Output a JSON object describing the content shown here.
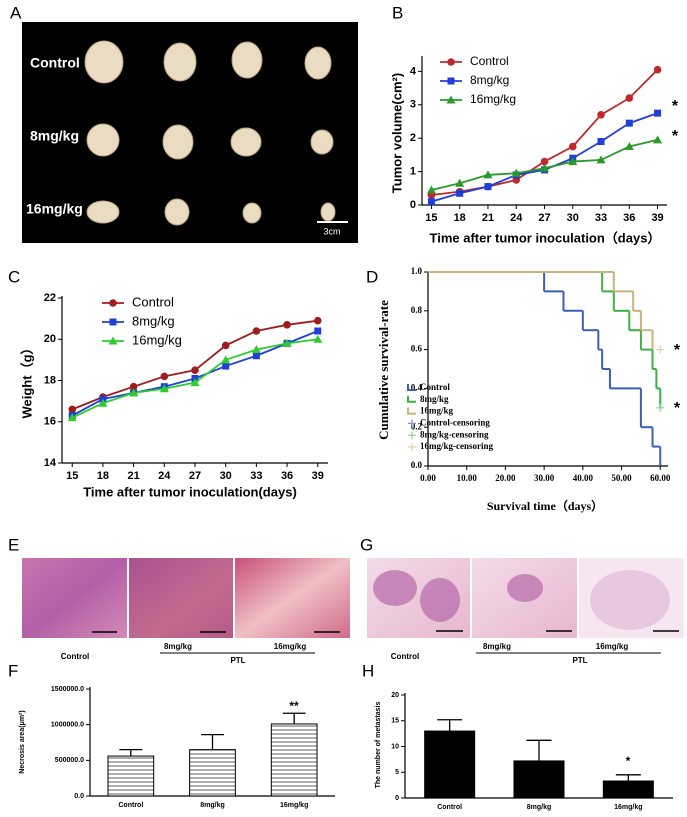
{
  "images": {
    "A": {
      "panel": "A",
      "labels": [
        "Control",
        "8mg/kg",
        "16mg/kg"
      ],
      "scale_bar": "3cm"
    },
    "E": {
      "panel": "E",
      "labels": [
        "Control",
        "8mg/kg",
        "16mg/kg"
      ],
      "group": "PTL"
    },
    "G": {
      "panel": "G",
      "labels": [
        "Control",
        "8mg/kg",
        "16mg/kg"
      ],
      "group": "PTL"
    }
  },
  "chart_data": [
    {
      "type": "line",
      "panel": "B",
      "x_label": "Time after tumor inoculation（days）",
      "y_label": "Tumor volume(cm²)",
      "x": [
        15,
        18,
        21,
        24,
        27,
        30,
        33,
        36,
        39
      ],
      "series": [
        {
          "name": "Control",
          "color": "#c0282d",
          "marker": "circle",
          "values": [
            0.3,
            0.4,
            0.55,
            0.75,
            1.3,
            1.75,
            2.7,
            3.2,
            4.05
          ]
        },
        {
          "name": "8mg/kg",
          "color": "#1f3fd8",
          "marker": "square",
          "values": [
            0.1,
            0.35,
            0.55,
            0.9,
            1.05,
            1.4,
            1.9,
            2.45,
            2.75
          ]
        },
        {
          "name": "16mg/kg",
          "color": "#2a9a2a",
          "marker": "triangle",
          "values": [
            0.45,
            0.65,
            0.9,
            0.95,
            1.1,
            1.3,
            1.35,
            1.75,
            1.95
          ]
        }
      ],
      "xlim": [
        14,
        40
      ],
      "xticks": [
        15,
        18,
        21,
        24,
        27,
        30,
        33,
        36,
        39
      ],
      "ylim": [
        0,
        4.4
      ],
      "yticks": [
        0,
        1,
        2,
        3,
        4
      ],
      "legend": "upper left",
      "annotations": [
        "*",
        "*"
      ]
    },
    {
      "type": "line",
      "panel": "C",
      "x_label": "Time after tumor inoculation(days)",
      "y_label": "Weight（g）",
      "x": [
        15,
        18,
        21,
        24,
        27,
        30,
        33,
        36,
        39
      ],
      "series": [
        {
          "name": "Control",
          "color": "#a01c1c",
          "marker": "circle",
          "values": [
            16.6,
            17.2,
            17.7,
            18.2,
            18.5,
            19.7,
            20.4,
            20.7,
            20.9
          ]
        },
        {
          "name": "8mg/kg",
          "color": "#1f3fd8",
          "marker": "square",
          "values": [
            16.3,
            17.1,
            17.4,
            17.7,
            18.1,
            18.7,
            19.2,
            19.8,
            20.4
          ]
        },
        {
          "name": "16mg/kg",
          "color": "#2ecc2e",
          "marker": "triangle",
          "values": [
            16.2,
            16.9,
            17.4,
            17.6,
            17.9,
            19.0,
            19.5,
            19.8,
            20.0
          ]
        }
      ],
      "xlim": [
        14,
        40
      ],
      "xticks": [
        15,
        18,
        21,
        24,
        27,
        30,
        33,
        36,
        39
      ],
      "ylim": [
        14,
        22
      ],
      "yticks": [
        14,
        16,
        18,
        20,
        22
      ],
      "legend": "upper left"
    },
    {
      "type": "step",
      "panel": "D",
      "x_label": "Survival time（days）",
      "y_label": "Cumulative survival-rate",
      "series": [
        {
          "name": "Control",
          "color": "#3a5fb8",
          "x": [
            0,
            30,
            35,
            40,
            44,
            45,
            47,
            55,
            58,
            60
          ],
          "values": [
            1.0,
            0.9,
            0.8,
            0.7,
            0.6,
            0.5,
            0.4,
            0.2,
            0.1,
            0.0
          ]
        },
        {
          "name": "8mg/kg",
          "color": "#3cb043",
          "x": [
            0,
            45,
            48,
            52,
            55,
            58,
            59,
            60
          ],
          "values": [
            1.0,
            0.9,
            0.8,
            0.7,
            0.6,
            0.5,
            0.4,
            0.3
          ]
        },
        {
          "name": "16mg/kg",
          "color": "#c8b47a",
          "x": [
            0,
            48,
            53,
            55,
            58
          ],
          "values": [
            1.0,
            0.9,
            0.8,
            0.7,
            0.6
          ]
        },
        {
          "name": "Control-censoring",
          "color": "#7f95cf",
          "censoring": true,
          "x": [],
          "values": []
        },
        {
          "name": "8mg/kg-censoring",
          "color": "#8ad48f",
          "censoring": true,
          "x": [
            60
          ],
          "values": [
            0.3
          ]
        },
        {
          "name": "16mg/kg-censoring",
          "color": "#ddd0a8",
          "censoring": true,
          "x": [
            60
          ],
          "values": [
            0.6
          ]
        }
      ],
      "xlim": [
        0,
        62
      ],
      "xticks": [
        {
          "value": 0,
          "label": "0.00"
        },
        {
          "value": 10,
          "label": "10.00"
        },
        {
          "value": 20,
          "label": "20.00"
        },
        {
          "value": 30,
          "label": "30.00"
        },
        {
          "value": 40,
          "label": "40.00"
        },
        {
          "value": 50,
          "label": "50.00"
        },
        {
          "value": 60,
          "label": "60.00"
        }
      ],
      "ylim": [
        0,
        1
      ],
      "yticks": [
        {
          "value": 0,
          "label": "0.0"
        },
        {
          "value": 0.2,
          "label": "0.2"
        },
        {
          "value": 0.4,
          "label": "0.4"
        },
        {
          "value": 0.6,
          "label": "0.6"
        },
        {
          "value": 0.8,
          "label": "0.8"
        },
        {
          "value": 1,
          "label": "1.0"
        }
      ],
      "legend": "lower left",
      "annotations": [
        "*",
        "*"
      ]
    },
    {
      "type": "bar",
      "panel": "F",
      "y_label": "Necrosis area(μm²)",
      "categories": [
        "Control",
        "8mg/kg",
        "16mg/kg"
      ],
      "values": [
        560000,
        650000,
        1010000
      ],
      "errors": [
        90000,
        210000,
        150000
      ],
      "color": "#ffffff",
      "hatch": true,
      "ylim": [
        0,
        1500000
      ],
      "yticks": [
        {
          "value": 0,
          "label": "0.0"
        },
        {
          "value": 500000,
          "label": "500000.0"
        },
        {
          "value": 1000000,
          "label": "1000000.0"
        },
        {
          "value": 1500000,
          "label": "1500000.0"
        }
      ],
      "annotations": [
        "**"
      ]
    },
    {
      "type": "bar",
      "panel": "H",
      "y_label": "The number of metastasis",
      "categories": [
        "Control",
        "8mg/kg",
        "16mg/kg"
      ],
      "values": [
        13,
        7.2,
        3.3
      ],
      "errors": [
        2.2,
        4.0,
        1.2
      ],
      "color": "#000000",
      "hatch": false,
      "ylim": [
        0,
        20
      ],
      "yticks": [
        0,
        5,
        10,
        15,
        20
      ],
      "annotations": [
        "*"
      ]
    }
  ]
}
